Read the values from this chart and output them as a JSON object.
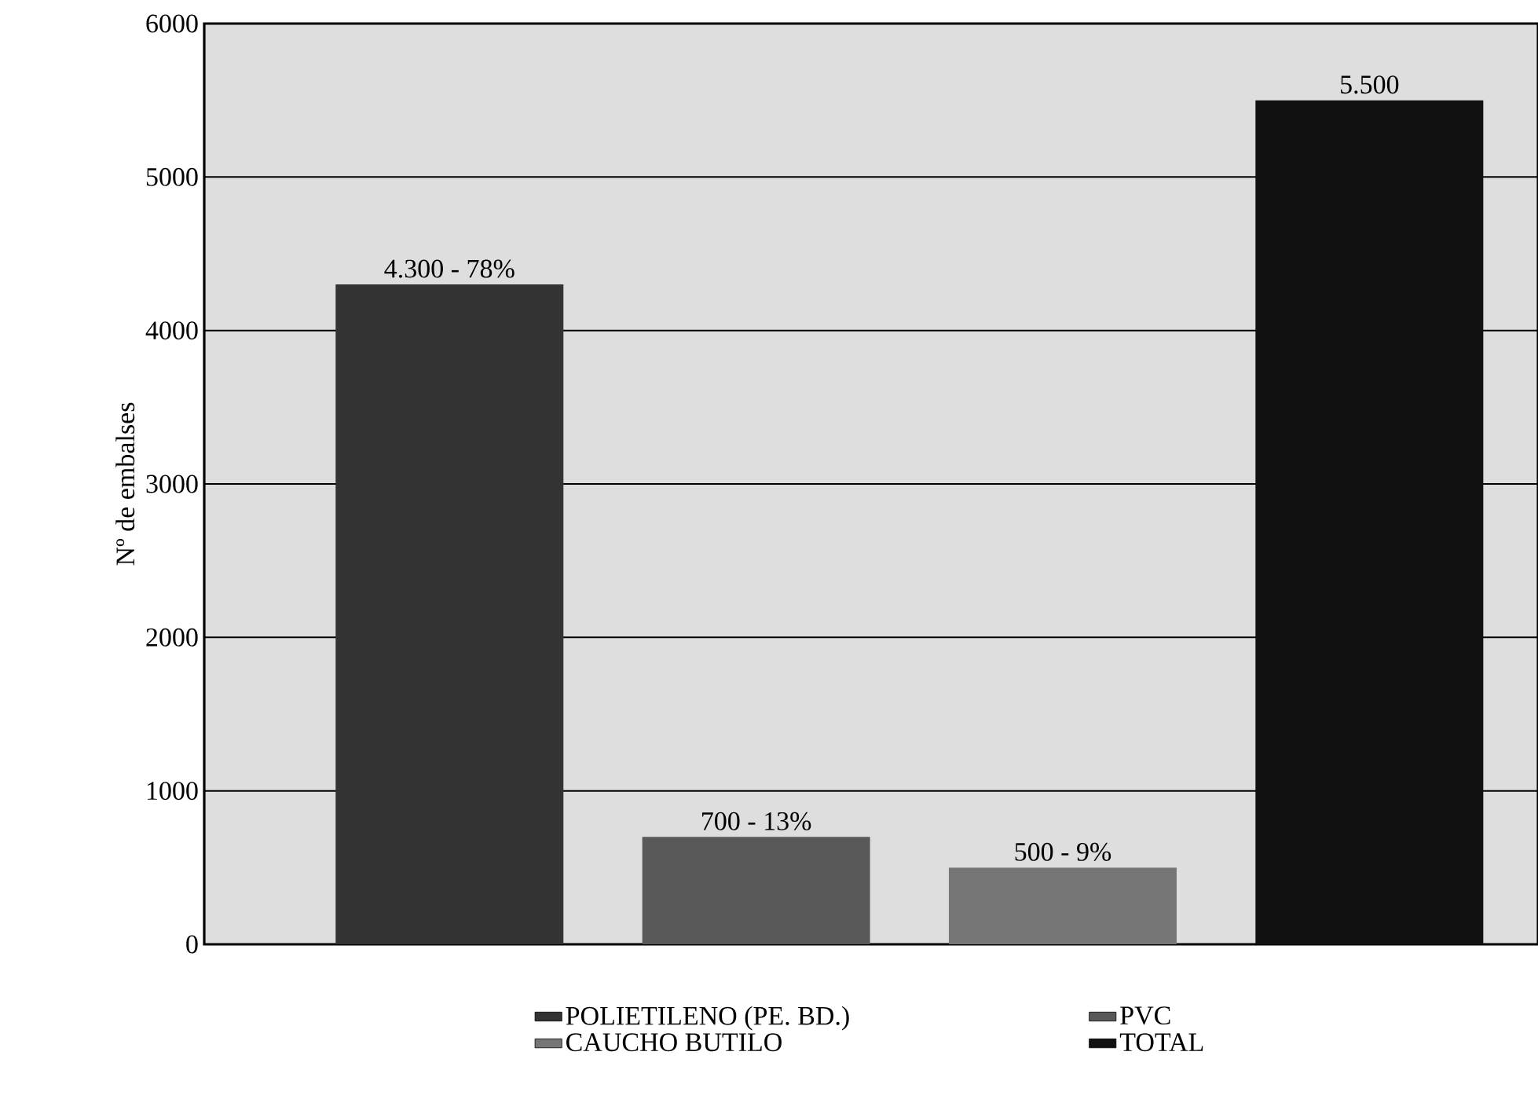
{
  "chart_data": {
    "type": "bar",
    "ylabel": "Nº de embalses",
    "categories": [
      null,
      null,
      null,
      null
    ],
    "series": [
      {
        "name": "POLIETILENO (PE. BD.)",
        "color": "#333333",
        "values": [
          4300,
          null,
          null,
          null
        ],
        "value_labels": [
          "4.300 - 78%",
          null,
          null,
          null
        ]
      },
      {
        "name": "PVC",
        "color": "#595959",
        "values": [
          null,
          700,
          null,
          null
        ],
        "value_labels": [
          null,
          "700 - 13%",
          null,
          null
        ]
      },
      {
        "name": "CAUCHO BUTILO",
        "color": "#767676",
        "values": [
          null,
          null,
          500,
          null
        ],
        "value_labels": [
          null,
          null,
          "500 - 9%",
          null
        ]
      },
      {
        "name": "TOTAL",
        "color": "#111111",
        "values": [
          null,
          null,
          null,
          5500
        ],
        "value_labels": [
          null,
          null,
          null,
          "5.500"
        ]
      }
    ],
    "ylim": [
      0,
      6000
    ],
    "yticks": [
      0,
      1000,
      2000,
      3000,
      4000,
      5000,
      6000
    ],
    "grid": "y",
    "legend": "bottom",
    "tick_labels": "y"
  }
}
